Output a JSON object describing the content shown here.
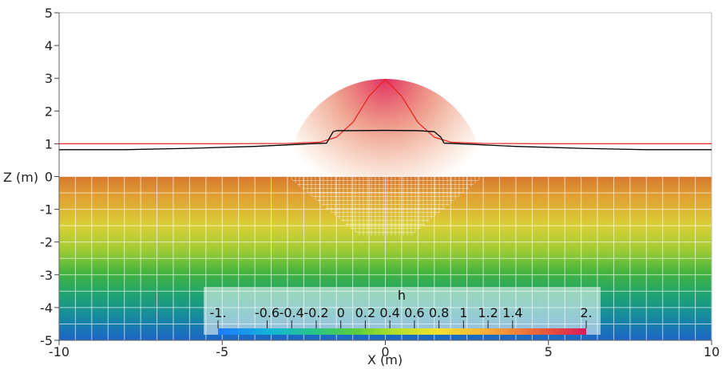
{
  "chart_data": {
    "type": "line",
    "xlabel": "X (m)",
    "ylabel": "Z (m)",
    "xlim": [
      -10,
      10
    ],
    "ylim": [
      -5,
      5
    ],
    "x_ticks": [
      "-10",
      "-5",
      "0",
      "5",
      "10"
    ],
    "y_ticks": [
      "5",
      "4",
      "3",
      "2",
      "1",
      "0",
      "-1",
      "-2",
      "-3",
      "-4",
      "-5"
    ],
    "series": [
      {
        "color": "#e8231f",
        "x": [
          -10,
          -5,
          -3,
          -2,
          -1.5,
          -1,
          -0.5,
          0,
          0.5,
          1,
          1.5,
          2,
          3,
          5,
          10
        ],
        "y": [
          1.0,
          1.0,
          1.01,
          1.05,
          1.2,
          1.65,
          2.45,
          2.97,
          2.45,
          1.65,
          1.2,
          1.05,
          1.01,
          1.0,
          1.0
        ]
      },
      {
        "color": "#000000",
        "x": [
          -10,
          -8,
          -6,
          -4,
          -2.5,
          -1.8,
          -1.7,
          -1.6,
          -1.5,
          -1,
          0,
          1,
          1.5,
          1.7,
          1.8,
          2.5,
          4,
          6,
          8,
          10
        ],
        "y": [
          0.82,
          0.82,
          0.86,
          0.92,
          0.99,
          1.02,
          1.2,
          1.37,
          1.4,
          1.4,
          1.41,
          1.4,
          1.37,
          1.2,
          1.02,
          0.99,
          0.92,
          0.86,
          0.82,
          0.82
        ]
      }
    ],
    "field": {
      "name": "h",
      "x_range": [
        -10,
        10
      ],
      "z_range": [
        -5,
        0
      ],
      "refined_zone_top": [
        -3.0,
        3.0
      ],
      "refined_zone_bottom": [
        -0.8,
        0.8
      ],
      "refined_zone_depth": -1.8
    },
    "colorbar": {
      "title": "h",
      "labels": [
        "-1.",
        "-0.6",
        "-0.4",
        "-0.2",
        "0",
        "0.2",
        "0.4",
        "0.6",
        "0.8",
        "1",
        "1.2",
        "1.4",
        "2."
      ],
      "values": [
        -1,
        -0.6,
        -0.4,
        -0.2,
        0,
        0.2,
        0.4,
        0.6,
        0.8,
        1,
        1.2,
        1.4,
        2
      ],
      "colors": [
        "#1f78ff",
        "#12b5d8",
        "#28c488",
        "#5fce3a",
        "#b2e02a",
        "#f4e12e",
        "#f7b237",
        "#ef7d39",
        "#e5463f",
        "#d81b5d"
      ]
    }
  }
}
